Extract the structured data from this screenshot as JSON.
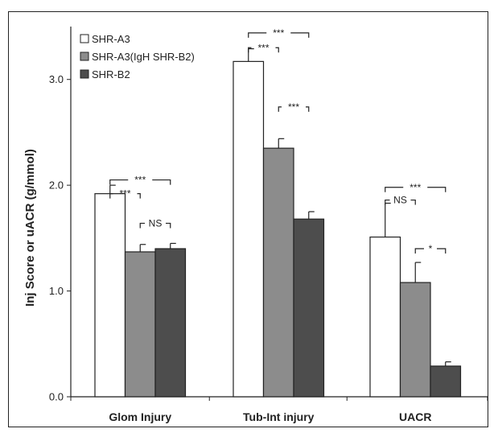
{
  "chart_data": {
    "type": "bar",
    "categories": [
      "Glom Injury",
      "Tub-Int injury",
      "UACR"
    ],
    "series": [
      {
        "name": "SHR-A3",
        "values": [
          1.92,
          3.17,
          1.51
        ],
        "errors": [
          0.08,
          0.12,
          0.32
        ],
        "color": "#ffffff"
      },
      {
        "name": "SHR-A3(IgH SHR-B2)",
        "values": [
          1.37,
          2.35,
          1.08
        ],
        "errors": [
          0.07,
          0.09,
          0.19
        ],
        "color": "#8c8c8c"
      },
      {
        "name": "SHR-B2",
        "values": [
          1.4,
          1.68,
          0.29
        ],
        "errors": [
          0.05,
          0.07,
          0.04
        ],
        "color": "#4d4d4d"
      }
    ],
    "ylabel": "Inj Score or uACR (g/mmol)",
    "ylim": [
      0,
      3.5
    ],
    "yticks": [
      "0.0",
      "1.0",
      "2.0",
      "3.0"
    ],
    "ytick_values": [
      0,
      1,
      2,
      3
    ],
    "legend_position": "top-left",
    "grid": false,
    "significance": [
      {
        "category": 0,
        "from": 0,
        "to": 2,
        "label": "***",
        "level": 2.05
      },
      {
        "category": 0,
        "from": 0,
        "to": 1,
        "label": "***",
        "level": 1.92
      },
      {
        "category": 0,
        "from": 1,
        "to": 2,
        "label": "NS",
        "level": 1.64
      },
      {
        "category": 1,
        "from": 0,
        "to": 2,
        "label": "***",
        "level": 3.44
      },
      {
        "category": 1,
        "from": 0,
        "to": 1,
        "label": "***",
        "level": 3.3
      },
      {
        "category": 1,
        "from": 1,
        "to": 2,
        "label": "***",
        "level": 2.74
      },
      {
        "category": 2,
        "from": 0,
        "to": 2,
        "label": "***",
        "level": 1.98
      },
      {
        "category": 2,
        "from": 0,
        "to": 1,
        "label": "NS",
        "level": 1.86
      },
      {
        "category": 2,
        "from": 1,
        "to": 2,
        "label": "*",
        "level": 1.4
      }
    ]
  }
}
